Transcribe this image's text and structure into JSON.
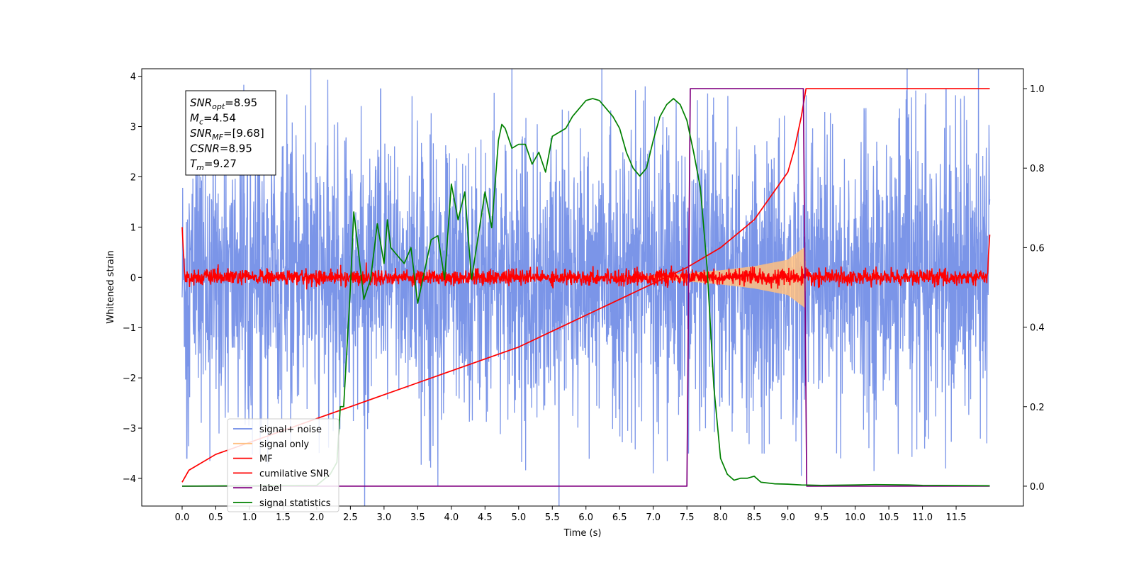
{
  "chart_data": {
    "type": "line",
    "title": "",
    "xlabel": "Time (s)",
    "ylabel": "Whitened strain",
    "y2label": "",
    "xlim": [
      -0.6,
      12.5
    ],
    "ylim": [
      -4.55,
      4.15
    ],
    "y2lim": [
      -0.05,
      1.05
    ],
    "x_ticks": [
      0.0,
      0.5,
      1.0,
      1.5,
      2.0,
      2.5,
      3.0,
      3.5,
      4.0,
      4.5,
      5.0,
      5.5,
      6.0,
      6.5,
      7.0,
      7.5,
      8.0,
      8.5,
      9.0,
      9.5,
      10.0,
      10.5,
      11.0,
      11.5
    ],
    "x_tick_labels": [
      "0.0",
      "0.5",
      "1.0",
      "1.5",
      "2.0",
      "2.5",
      "3.0",
      "3.5",
      "4.0",
      "4.5",
      "5.0",
      "5.5",
      "6.0",
      "6.5",
      "7.0",
      "7.5",
      "8.0",
      "8.5",
      "9.0",
      "9.5",
      "10.0",
      "10.5",
      "11.0",
      "11.5"
    ],
    "y_ticks": [
      -4,
      -3,
      -2,
      -1,
      0,
      1,
      2,
      3,
      4
    ],
    "y_tick_labels": [
      "−4",
      "−3",
      "−2",
      "−1",
      "0",
      "1",
      "2",
      "3",
      "4"
    ],
    "y2_ticks": [
      0.0,
      0.2,
      0.4,
      0.6,
      0.8,
      1.0
    ],
    "y2_tick_labels": [
      "0.0",
      "0.2",
      "0.4",
      "0.6",
      "0.8",
      "1.0"
    ],
    "grid": false,
    "legend_position": "lower-left",
    "legend": [
      {
        "name": "signal+ noise",
        "color": "#6d8ae6"
      },
      {
        "name": "signal only",
        "color": "#ffbf80"
      },
      {
        "name": "MF",
        "color": "#ff0000"
      },
      {
        "name": "cumilative SNR",
        "color": "#ff0000"
      },
      {
        "name": "label",
        "color": "#800080"
      },
      {
        "name": "signal statistics",
        "color": "#008000"
      }
    ],
    "annotation_lines": [
      {
        "name": "SNR",
        "sub": "opt",
        "value": "=8.95"
      },
      {
        "name": "M",
        "sub": "c",
        "value": "=4.54"
      },
      {
        "name": "SNR",
        "sub": "MF",
        "value": "=[9.68]"
      },
      {
        "name": "CSNR",
        "sub": "",
        "value": "=8.95"
      },
      {
        "name": "T",
        "sub": "m",
        "value": "=9.27"
      }
    ],
    "series": [
      {
        "name": "signal+ noise",
        "axis": "left",
        "color": "#6d8ae6",
        "x_range": [
          0.0,
          12.0
        ],
        "band": [
          -1.6,
          1.6
        ],
        "peaks": [
          {
            "x": 0.07,
            "y": -3.6
          },
          {
            "x": 2.95,
            "y": 3.75
          },
          {
            "x": 3.8,
            "y": -4.15
          },
          {
            "x": 7.0,
            "y": -3.9
          },
          {
            "x": 9.2,
            "y": -3.95
          },
          {
            "x": 11.35,
            "y": 3.75
          }
        ]
      },
      {
        "name": "signal only",
        "axis": "left",
        "color": "#ffbf80",
        "envelope": {
          "x": [
            6.8,
            7.5,
            8.0,
            8.5,
            9.0,
            9.25,
            9.27
          ],
          "amp": [
            0.02,
            0.08,
            0.14,
            0.22,
            0.35,
            0.6,
            0.0
          ]
        }
      },
      {
        "name": "MF",
        "axis": "left",
        "color": "#ff0000",
        "x_range": [
          0.0,
          12.0
        ],
        "band": [
          -0.12,
          0.12
        ],
        "endpoints": {
          "start": 1.0,
          "end": 0.85
        }
      },
      {
        "name": "cumilative SNR",
        "axis": "right",
        "color": "#ff0000",
        "x": [
          0.0,
          0.1,
          0.5,
          1.0,
          1.5,
          2.0,
          2.5,
          3.0,
          3.5,
          4.0,
          4.5,
          5.0,
          5.5,
          6.0,
          6.5,
          7.0,
          7.5,
          8.0,
          8.5,
          9.0,
          9.1,
          9.2,
          9.27,
          9.3,
          12.0
        ],
        "y": [
          0.01,
          0.04,
          0.08,
          0.11,
          0.14,
          0.17,
          0.2,
          0.23,
          0.26,
          0.29,
          0.32,
          0.35,
          0.39,
          0.43,
          0.47,
          0.51,
          0.55,
          0.6,
          0.67,
          0.79,
          0.85,
          0.93,
          1.0,
          1.0,
          1.0
        ]
      },
      {
        "name": "label",
        "axis": "right",
        "color": "#800080",
        "x": [
          0.0,
          7.5,
          7.55,
          9.23,
          9.28,
          12.0
        ],
        "y": [
          0.0,
          0.0,
          1.0,
          1.0,
          0.0,
          0.0
        ]
      },
      {
        "name": "signal statistics",
        "axis": "right",
        "color": "#008000",
        "x": [
          0.0,
          1.0,
          2.0,
          2.2,
          2.3,
          2.35,
          2.4,
          2.5,
          2.55,
          2.6,
          2.7,
          2.8,
          2.9,
          3.0,
          3.05,
          3.1,
          3.2,
          3.3,
          3.4,
          3.5,
          3.6,
          3.7,
          3.8,
          3.9,
          4.0,
          4.1,
          4.2,
          4.3,
          4.4,
          4.5,
          4.6,
          4.7,
          4.75,
          4.8,
          4.9,
          5.0,
          5.1,
          5.2,
          5.3,
          5.4,
          5.5,
          5.6,
          5.7,
          5.8,
          5.9,
          6.0,
          6.1,
          6.2,
          6.3,
          6.4,
          6.5,
          6.6,
          6.7,
          6.8,
          6.9,
          7.0,
          7.1,
          7.2,
          7.3,
          7.4,
          7.5,
          7.6,
          7.7,
          7.8,
          7.9,
          8.0,
          8.1,
          8.2,
          8.3,
          8.4,
          8.5,
          8.6,
          8.8,
          9.0,
          9.2,
          9.5,
          10.0,
          10.3,
          10.8,
          11.0,
          12.0
        ],
        "y": [
          0.0,
          0.001,
          0.002,
          0.03,
          0.06,
          0.2,
          0.2,
          0.5,
          0.69,
          0.62,
          0.47,
          0.52,
          0.66,
          0.56,
          0.67,
          0.6,
          0.58,
          0.56,
          0.6,
          0.46,
          0.54,
          0.62,
          0.63,
          0.52,
          0.76,
          0.67,
          0.74,
          0.52,
          0.63,
          0.74,
          0.65,
          0.87,
          0.91,
          0.9,
          0.85,
          0.86,
          0.86,
          0.81,
          0.84,
          0.79,
          0.88,
          0.89,
          0.9,
          0.93,
          0.95,
          0.97,
          0.975,
          0.97,
          0.95,
          0.93,
          0.9,
          0.84,
          0.8,
          0.78,
          0.8,
          0.87,
          0.93,
          0.96,
          0.975,
          0.96,
          0.92,
          0.84,
          0.75,
          0.55,
          0.25,
          0.07,
          0.03,
          0.015,
          0.02,
          0.02,
          0.025,
          0.01,
          0.006,
          0.005,
          0.003,
          0.002,
          0.003,
          0.004,
          0.003,
          0.002,
          0.001
        ]
      }
    ]
  }
}
